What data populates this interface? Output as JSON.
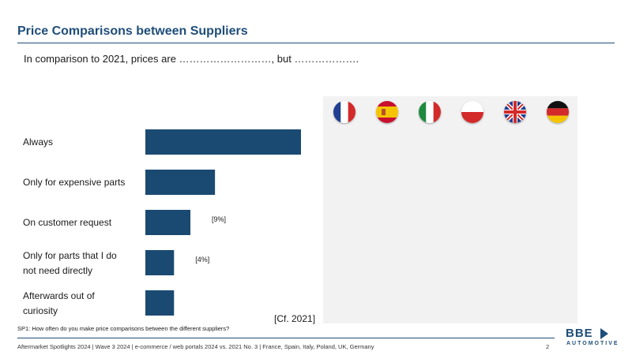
{
  "header": {
    "title": "Price Comparisons between Suppliers",
    "subtitle": "In comparison to 2021, prices are ………………………, but ………………."
  },
  "chart_data": {
    "type": "bar",
    "orientation": "horizontal",
    "categories": [
      "Always",
      "Only for expensive parts",
      "On customer request",
      "Only for parts that I do not need directly",
      "Afterwards out of curiosity"
    ],
    "values": [
      38,
      17,
      11,
      7,
      7
    ],
    "data_labels": [
      "",
      "",
      "[9%]",
      "[4%]",
      ""
    ],
    "bar_color": "#1a4a72",
    "xlim": [
      0,
      40
    ],
    "grid": false,
    "note": "[Cf. 2021]"
  },
  "flags": [
    {
      "name": "france-flag-icon"
    },
    {
      "name": "spain-flag-icon"
    },
    {
      "name": "italy-flag-icon"
    },
    {
      "name": "poland-flag-icon"
    },
    {
      "name": "uk-flag-icon"
    },
    {
      "name": "germany-flag-icon"
    }
  ],
  "question": "SP1: How often do you make price comparisons between the different suppliers?",
  "footer": {
    "text": "Aftermarket Spotlights 2024 | Wave 3 2024 | e-commerce / web portals 2024 vs. 2021 No. 3 | France, Spain, Italy, Poland, UK, Germany",
    "page": "2"
  },
  "logo": {
    "main": "BBE",
    "sub": "AUTOMOTIVE"
  },
  "colors": {
    "brand": "#1f4e79",
    "panel": "#f2f2f2"
  }
}
